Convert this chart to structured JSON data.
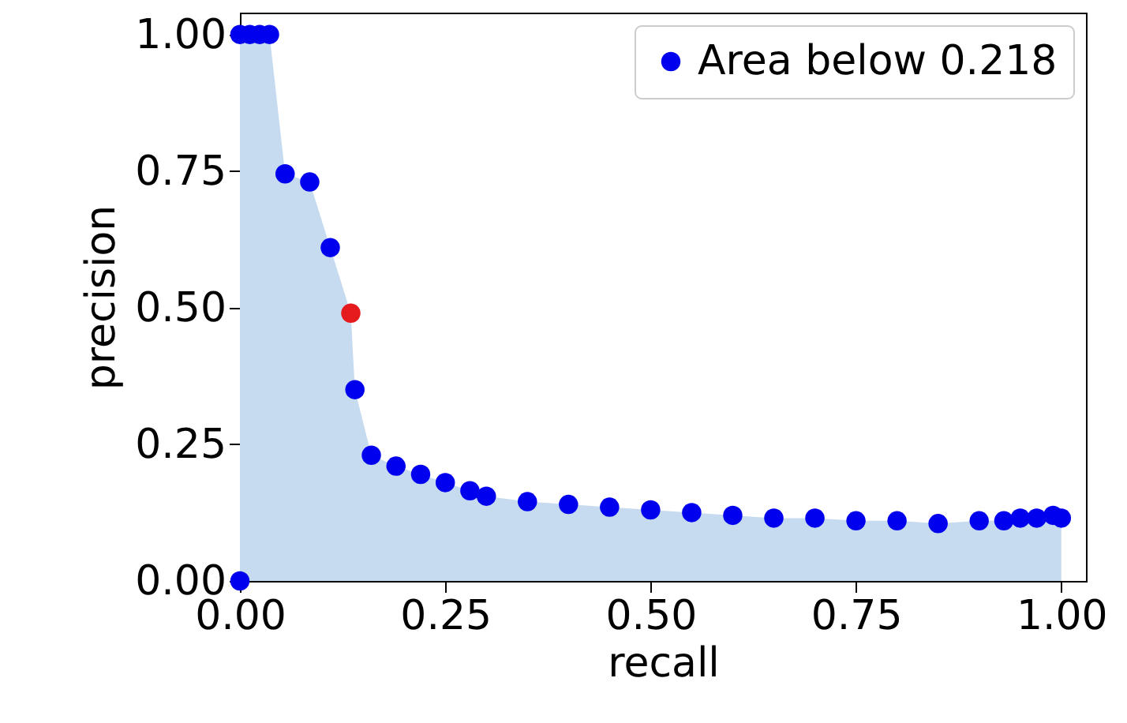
{
  "chart_data": {
    "type": "scatter",
    "xlabel": "recall",
    "ylabel": "precision",
    "xlim": [
      0,
      1.03
    ],
    "ylim": [
      0,
      1.04
    ],
    "xticks": [
      {
        "value": 0,
        "label": "0.00"
      },
      {
        "value": 0.25,
        "label": "0.25"
      },
      {
        "value": 0.5,
        "label": "0.50"
      },
      {
        "value": 0.75,
        "label": "0.75"
      },
      {
        "value": 1,
        "label": "1.00"
      }
    ],
    "yticks": [
      {
        "value": 0,
        "label": "0.00"
      },
      {
        "value": 0.25,
        "label": "0.25"
      },
      {
        "value": 0.5,
        "label": "0.50"
      },
      {
        "value": 0.75,
        "label": "0.75"
      },
      {
        "value": 1,
        "label": "1.00"
      }
    ],
    "grid": false,
    "legend": "top right",
    "series": [
      {
        "type": "area",
        "color": "#c6dbef",
        "x": [
          0,
          0.036,
          0.055,
          0.085,
          0.11,
          0.135,
          0.14,
          0.16,
          0.19,
          0.22,
          0.25,
          0.28,
          0.3,
          0.35,
          0.4,
          0.45,
          0.5,
          0.55,
          0.6,
          0.65,
          0.7,
          0.75,
          0.8,
          0.85,
          0.9,
          0.93,
          0.95,
          0.97,
          0.99,
          1.0
        ],
        "values": [
          1,
          1,
          0.745,
          0.73,
          0.61,
          0.49,
          0.35,
          0.23,
          0.21,
          0.195,
          0.18,
          0.165,
          0.155,
          0.145,
          0.14,
          0.135,
          0.13,
          0.125,
          0.12,
          0.115,
          0.115,
          0.11,
          0.11,
          0.105,
          0.11,
          0.11,
          0.115,
          0.115,
          0.12,
          0.115
        ]
      },
      {
        "name": "Area below 0.218",
        "marker": "circle",
        "color": "#0000ee",
        "x": [
          0,
          0,
          0.012,
          0.024,
          0.036,
          0.055,
          0.085,
          0.11,
          0.14,
          0.16,
          0.19,
          0.22,
          0.25,
          0.28,
          0.3,
          0.35,
          0.4,
          0.45,
          0.5,
          0.55,
          0.6,
          0.65,
          0.7,
          0.75,
          0.8,
          0.85,
          0.9,
          0.93,
          0.95,
          0.97,
          0.99,
          1.0
        ],
        "values": [
          0,
          1,
          1,
          1,
          1,
          0.745,
          0.73,
          0.61,
          0.35,
          0.23,
          0.21,
          0.195,
          0.18,
          0.165,
          0.155,
          0.145,
          0.14,
          0.135,
          0.13,
          0.125,
          0.12,
          0.115,
          0.115,
          0.11,
          0.11,
          0.105,
          0.11,
          0.11,
          0.115,
          0.115,
          0.12,
          0.115
        ]
      },
      {
        "marker": "circle",
        "color": "#e41a1c",
        "x": [
          0.135
        ],
        "values": [
          0.49
        ]
      }
    ]
  }
}
